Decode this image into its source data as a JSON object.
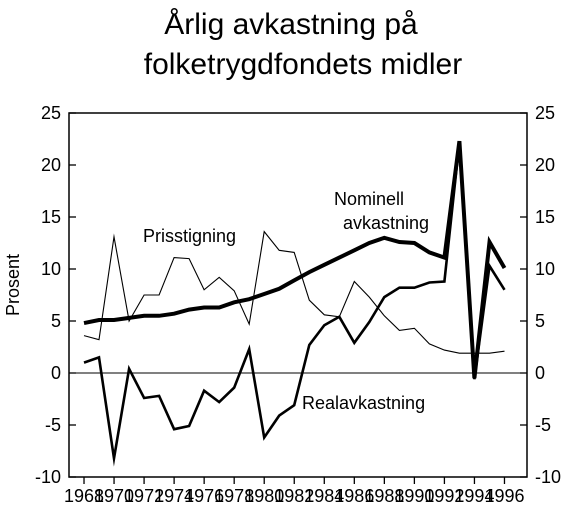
{
  "chart_data": {
    "type": "line",
    "title_lines": [
      "Årlig avkastning på",
      "folketrygdfondets midler"
    ],
    "ylabel": "Prosent",
    "xlabel": "",
    "ylim": [
      -10,
      25
    ],
    "xlim": [
      1967,
      1997.5
    ],
    "y_ticks": [
      -10,
      -5,
      0,
      5,
      10,
      15,
      20,
      25
    ],
    "x_ticks": [
      1968,
      1970,
      1972,
      1974,
      1976,
      1978,
      1980,
      1982,
      1984,
      1986,
      1988,
      1990,
      1992,
      1994,
      1996
    ],
    "y_tick_labels": [
      "-10",
      "-5",
      "0",
      "5",
      "10",
      "15",
      "20",
      "25"
    ],
    "x_tick_labels": [
      "1968",
      "1970",
      "1972",
      "1974",
      "1976",
      "1978",
      "1980",
      "1982",
      "1984",
      "1986",
      "1988",
      "1990",
      "1992",
      "1994",
      "1996"
    ],
    "grid": false,
    "zero_line": true,
    "x": [
      1968,
      1969,
      1970,
      1971,
      1972,
      1973,
      1974,
      1975,
      1976,
      1977,
      1978,
      1979,
      1980,
      1981,
      1982,
      1983,
      1984,
      1985,
      1986,
      1987,
      1988,
      1989,
      1990,
      1991,
      1992,
      1993,
      1994,
      1995,
      1996
    ],
    "series": [
      {
        "name": "Nominell avkastning",
        "style": "thick",
        "values": [
          4.8,
          5.1,
          5.1,
          5.3,
          5.5,
          5.5,
          5.7,
          6.1,
          6.3,
          6.3,
          6.8,
          7.1,
          7.6,
          8.1,
          8.9,
          9.7,
          10.4,
          11.1,
          11.8,
          12.5,
          13.0,
          12.6,
          12.5,
          11.6,
          11.1,
          22.3,
          -0.5,
          12.6,
          10.1
        ]
      },
      {
        "name": "Prisstigning",
        "style": "thin",
        "values": [
          3.6,
          3.2,
          13.1,
          5.0,
          7.5,
          7.5,
          11.1,
          11.0,
          8.0,
          9.2,
          7.9,
          4.7,
          13.6,
          11.8,
          11.6,
          7.0,
          5.6,
          5.4,
          8.8,
          7.3,
          5.5,
          4.1,
          4.3,
          2.8,
          2.2,
          1.9,
          1.9,
          1.9,
          2.1
        ]
      },
      {
        "name": "Realavkastning",
        "style": "medium",
        "values": [
          1.0,
          1.5,
          -8.2,
          0.4,
          -2.4,
          -2.2,
          -5.4,
          -5.1,
          -1.7,
          -2.8,
          -1.4,
          2.3,
          -6.2,
          -4.1,
          -3.1,
          2.7,
          4.6,
          5.4,
          2.9,
          4.9,
          7.3,
          8.2,
          8.2,
          8.7,
          8.8,
          22.2,
          -0.6,
          10.3,
          8.0
        ]
      }
    ],
    "annotations": {
      "prisstigning": "Prisstigning",
      "nominell_line1": "Nominell",
      "nominell_line2": "avkastning",
      "realavkastning": "Realavkastning"
    },
    "colors": {
      "lines": "#000000",
      "background": "#ffffff"
    }
  }
}
